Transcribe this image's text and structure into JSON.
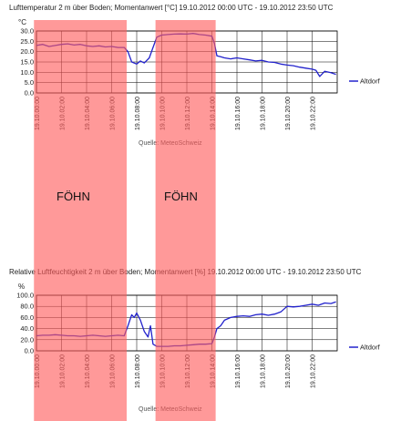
{
  "charts": {
    "top": {
      "title": "Lufttemperatur 2 m über Boden; Momentanwert [°C]  19.10.2012 00:00 UTC - 19.10.2012 23:50 UTC",
      "unit": "°C",
      "source": "Quelle: MeteoSchweiz"
    },
    "bottom": {
      "title": "Relative Luftfeuchtigkeit 2 m über Boden; Momentanwert [%]  19.10.2012 00:00 UTC - 19.10.2012 23:50 UTC",
      "unit": "%",
      "source": "Quelle: MeteoSchweiz"
    }
  },
  "annotations": {
    "fohn_label_1": "FÖHN",
    "fohn_label_2": "FÖHN",
    "fohn_periods_hours": [
      [
        -0.2,
        7.2
      ],
      [
        9.5,
        14.3
      ]
    ],
    "fohn_color": "#ff5a5a"
  },
  "colors": {
    "series": "#2222cc",
    "grid": "#000000"
  },
  "chart_data": [
    {
      "type": "line",
      "title": "Lufttemperatur 2 m über Boden; Momentanwert [°C]  19.10.2012 00:00 UTC - 19.10.2012 23:50 UTC",
      "ylabel": "°C",
      "xlabel": "",
      "ylim": [
        0,
        30
      ],
      "yticks": [
        0.0,
        5.0,
        10.0,
        15.0,
        20.0,
        25.0,
        30.0
      ],
      "xlim": [
        0,
        24
      ],
      "xticks": [
        "19.10.00:00",
        "19.10.02:00",
        "19.10.04:00",
        "19.10.06:00",
        "19.10.08:00",
        "19.10.10:00",
        "19.10.12:00",
        "19.10.14:00",
        "19.10.16:00",
        "19.10.18:00",
        "19.10.20:00",
        "19.10.22:00"
      ],
      "grid": true,
      "legend": "right",
      "series": [
        {
          "name": "Altdorf",
          "x": [
            0,
            0.5,
            1,
            1.5,
            2,
            2.5,
            3,
            3.5,
            4,
            4.5,
            5,
            5.5,
            6,
            6.5,
            7,
            7.3,
            7.6,
            8,
            8.3,
            8.6,
            9,
            9.3,
            9.6,
            10,
            10.5,
            11,
            11.5,
            12,
            12.5,
            13,
            13.5,
            14,
            14.2,
            14.4,
            14.7,
            15,
            15.5,
            16,
            16.5,
            17,
            17.5,
            18,
            18.5,
            19,
            19.5,
            20,
            20.5,
            21,
            21.5,
            22,
            22.3,
            22.6,
            23,
            23.5,
            23.9
          ],
          "y": [
            23,
            23.5,
            22.5,
            23,
            23.5,
            23.8,
            23.2,
            23.5,
            22.8,
            22.5,
            22.8,
            22.3,
            22.5,
            22,
            22,
            20,
            15,
            14,
            15.5,
            14.5,
            17,
            22,
            27,
            28,
            28.3,
            28.5,
            28.6,
            28.5,
            28.8,
            28.3,
            28,
            27.5,
            24,
            18,
            17.5,
            17,
            16.5,
            17,
            16.5,
            16,
            15.5,
            15.8,
            15,
            14.8,
            14,
            13.5,
            13.2,
            12.5,
            12,
            11.5,
            11,
            8,
            10.5,
            9.8,
            9
          ]
        }
      ]
    },
    {
      "type": "line",
      "title": "Relative Luftfeuchtigkeit 2 m über Boden; Momentanwert [%]  19.10.2012 00:00 UTC - 19.10.2012 23:50 UTC",
      "ylabel": "%",
      "xlabel": "",
      "ylim": [
        0,
        100
      ],
      "yticks": [
        0.0,
        20.0,
        40.0,
        60.0,
        80.0,
        100.0
      ],
      "xlim": [
        0,
        24
      ],
      "xticks": [
        "19.10.00:00",
        "19.10.02:00",
        "19.10.04:00",
        "19.10.06:00",
        "19.10.08:00",
        "19.10.10:00",
        "19.10.12:00",
        "19.10.14:00",
        "19.10.16:00",
        "19.10.18:00",
        "19.10.20:00",
        "19.10.22:00"
      ],
      "grid": true,
      "legend": "right",
      "series": [
        {
          "name": "Altdorf",
          "x": [
            0,
            0.5,
            1,
            1.5,
            2,
            2.5,
            3,
            3.5,
            4,
            4.5,
            5,
            5.5,
            6,
            6.5,
            7,
            7.3,
            7.6,
            7.8,
            8,
            8.3,
            8.6,
            8.9,
            9.1,
            9.3,
            9.6,
            10,
            10.5,
            11,
            11.5,
            12,
            12.5,
            13,
            13.5,
            14,
            14.2,
            14.4,
            14.7,
            15,
            15.5,
            16,
            16.5,
            17,
            17.5,
            18,
            18.5,
            19,
            19.5,
            20,
            20.5,
            21,
            21.5,
            22,
            22.5,
            23,
            23.5,
            23.9
          ],
          "y": [
            27,
            28,
            28,
            29,
            28,
            27,
            27,
            26,
            27,
            28,
            27,
            26,
            27,
            28,
            27,
            45,
            65,
            60,
            68,
            55,
            35,
            25,
            45,
            12,
            8,
            8,
            8,
            9,
            9,
            10,
            11,
            12,
            12,
            13,
            25,
            40,
            45,
            55,
            60,
            62,
            63,
            62,
            65,
            66,
            64,
            66,
            70,
            80,
            79,
            80,
            82,
            84,
            82,
            86,
            85,
            88
          ]
        }
      ]
    }
  ]
}
